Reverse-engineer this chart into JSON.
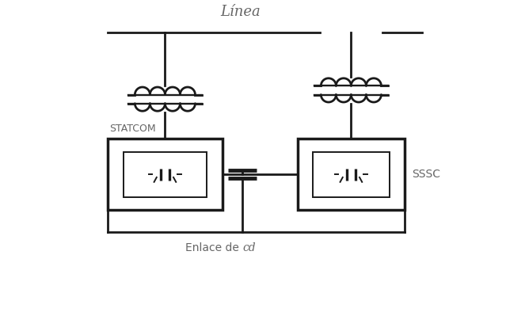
{
  "title": "Línea",
  "label_statcom": "STATCOM",
  "label_sssc": "SSSC",
  "label_enlace": "Enlace de ",
  "label_cd": "cd",
  "bg_color": "#ffffff",
  "line_color": "#1a1a1a",
  "text_color": "#666666",
  "line_width": 2.0,
  "lw_thin": 1.4
}
